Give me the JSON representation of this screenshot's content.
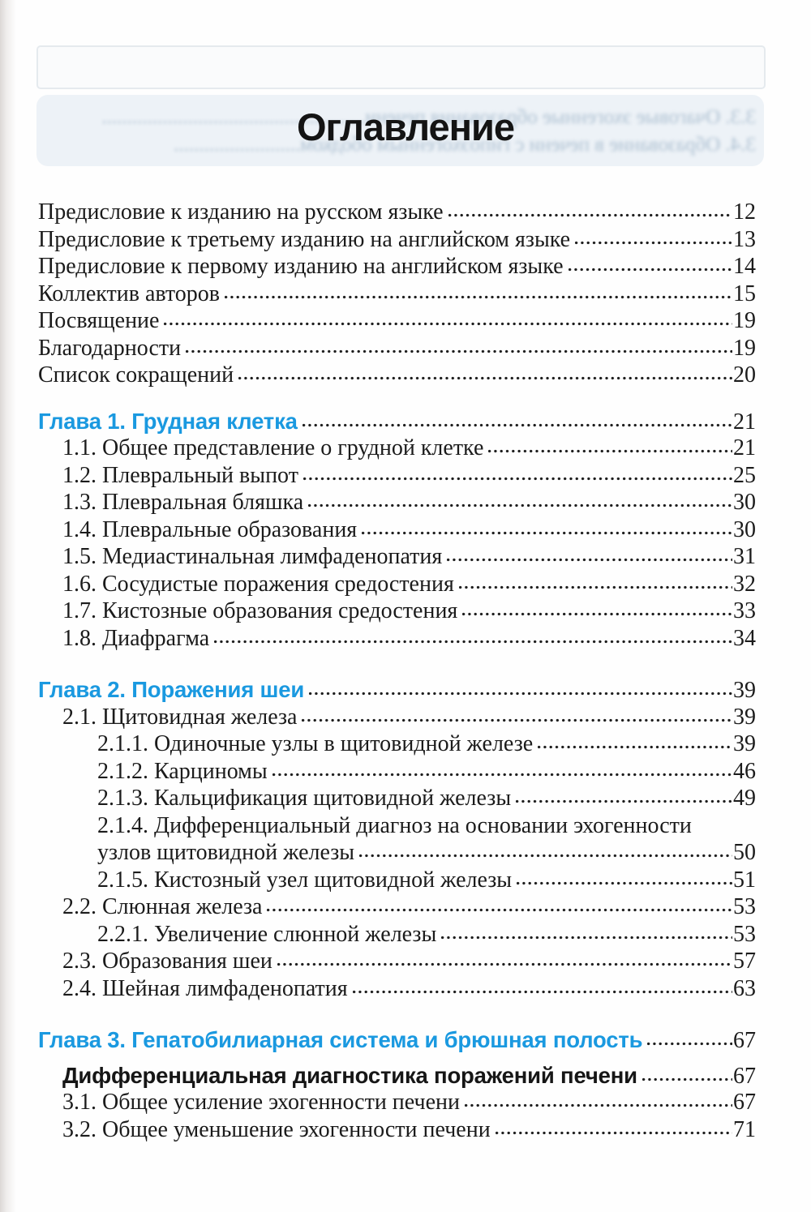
{
  "page": {
    "title": "Оглавление"
  },
  "colors": {
    "chapter_blue": "#1a99e0"
  },
  "ghost": {
    "line1": "3.3. Очаговые эхогенные образования печени....................................................",
    "line2": "3.4. Образование в печени с гипоэхогенным ободком........................."
  },
  "toc": {
    "front_matter": [
      {
        "label": "Предисловие к изданию на русском языке",
        "page": "12"
      },
      {
        "label": "Предисловие к третьему изданию на английском языке",
        "page": "13"
      },
      {
        "label": "Предисловие к первому изданию на английском языке",
        "page": "14"
      },
      {
        "label": "Коллектив авторов",
        "page": "15"
      },
      {
        "label": "Посвящение",
        "page": "19"
      },
      {
        "label": "Благодарности",
        "page": "19"
      },
      {
        "label": "Список сокращений",
        "page": "20"
      }
    ],
    "sections": [
      {
        "heading": {
          "label": "Глава 1. Грудная клетка",
          "page": "21"
        },
        "items": [
          {
            "label": "1.1. Общее представление о грудной клетке",
            "page": "21",
            "level": 1
          },
          {
            "label": "1.2. Плевральный выпот",
            "page": "25",
            "level": 1
          },
          {
            "label": "1.3. Плевральная бляшка",
            "page": "30",
            "level": 1
          },
          {
            "label": "1.4. Плевральные образования",
            "page": "30",
            "level": 1
          },
          {
            "label": "1.5. Медиастинальная лимфаденопатия",
            "page": "31",
            "level": 1
          },
          {
            "label": "1.6. Сосудистые поражения средостения",
            "page": "32",
            "level": 1
          },
          {
            "label": "1.7. Кистозные образования средостения",
            "page": "33",
            "level": 1
          },
          {
            "label": "1.8. Диафрагма",
            "page": "34",
            "level": 1
          }
        ]
      },
      {
        "heading": {
          "label": "Глава 2. Поражения шеи",
          "page": "39"
        },
        "items": [
          {
            "label": "2.1. Щитовидная железа",
            "page": "39",
            "level": 1
          },
          {
            "label": "2.1.1. Одиночные узлы в щитовидной железе",
            "page": "39",
            "level": 2
          },
          {
            "label": "2.1.2. Карциномы",
            "page": "46",
            "level": 2
          },
          {
            "label": "2.1.3. Кальцификация щитовидной железы",
            "page": "49",
            "level": 2
          },
          {
            "label": "2.1.4. Дифференциальный диагноз на основании эхогенности",
            "label2": "узлов щитовидной железы",
            "page": "50",
            "level": 2
          },
          {
            "label": "2.1.5. Кистозный узел щитовидной железы",
            "page": "51",
            "level": 2
          },
          {
            "label": "2.2. Слюнная железа",
            "page": "53",
            "level": 1
          },
          {
            "label": "2.2.1. Увеличение слюнной железы",
            "page": "53",
            "level": 2
          },
          {
            "label": "2.3. Образования шеи",
            "page": "57",
            "level": 1
          },
          {
            "label": "2.4. Шейная лимфаденопатия",
            "page": "63",
            "level": 1
          }
        ]
      },
      {
        "heading": {
          "label": "Глава 3. Гепатобилиарная система и брюшная полость",
          "page": "67"
        },
        "items": [
          {
            "label": "Дифференциальная диагностика поражений печени",
            "page": "67",
            "level": 1,
            "style": "bold"
          },
          {
            "label": "3.1. Общее усиление эхогенности печени",
            "page": "67",
            "level": 1
          },
          {
            "label": "3.2. Общее уменьшение эхогенности печени",
            "page": "71",
            "level": 1
          }
        ]
      }
    ]
  }
}
